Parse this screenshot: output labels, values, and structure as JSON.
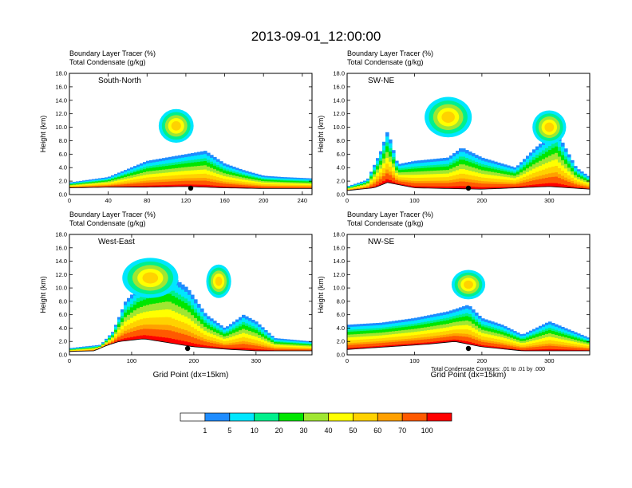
{
  "title": "2013-09-01_12:00:00",
  "palette": [
    "#ffffff",
    "#1e8cff",
    "#00e6ff",
    "#00f08c",
    "#00e600",
    "#a0e632",
    "#ffff00",
    "#ffd200",
    "#ffa000",
    "#ff5a00",
    "#ff0000"
  ],
  "colorbar": {
    "labels": [
      "1",
      "5",
      "10",
      "20",
      "30",
      "40",
      "50",
      "60",
      "70",
      "100"
    ]
  },
  "footnote": "Total Condensate Contours: .01 to .01 by .000",
  "chart_data": [
    {
      "type": "heatmap",
      "panel_label": "South-North",
      "subtitle1": "Boundary Layer Tracer    (%)",
      "subtitle2": "Total Condensate    (g/kg)",
      "ylabel": "Height (km)",
      "xlabel": "",
      "xlim": [
        0,
        250
      ],
      "ylim": [
        0,
        18
      ],
      "xticks": [
        "0",
        "40",
        "80",
        "120",
        "160",
        "200",
        "240"
      ],
      "yticks": [
        "0.0",
        "2.0",
        "4.0",
        "6.0",
        "8.0",
        "10.0",
        "12.0",
        "14.0",
        "16.0",
        "18.0"
      ],
      "terrain_top_km": [
        [
          0,
          1.0
        ],
        [
          40,
          1.1
        ],
        [
          80,
          1.1
        ],
        [
          120,
          1.2
        ],
        [
          160,
          1.0
        ],
        [
          200,
          0.9
        ],
        [
          250,
          0.9
        ]
      ],
      "layer_top_km": [
        [
          0,
          1.8
        ],
        [
          40,
          2.6
        ],
        [
          60,
          3.8
        ],
        [
          80,
          5.0
        ],
        [
          100,
          5.5
        ],
        [
          120,
          6.0
        ],
        [
          140,
          6.5
        ],
        [
          160,
          4.6
        ],
        [
          180,
          3.6
        ],
        [
          200,
          2.8
        ],
        [
          220,
          2.6
        ],
        [
          250,
          2.4
        ]
      ],
      "anvil": [
        [
          110,
          10.2,
          18,
          2.5
        ]
      ],
      "marker_x": 125
    },
    {
      "type": "heatmap",
      "panel_label": "SW-NE",
      "subtitle1": "Boundary Layer Tracer    (%)",
      "subtitle2": "Total Condensate    (g/kg)",
      "ylabel": "Height (km)",
      "xlabel": "",
      "xlim": [
        0,
        360
      ],
      "ylim": [
        0,
        18
      ],
      "xticks": [
        "0",
        "100",
        "200",
        "300"
      ],
      "yticks": [
        "0.0",
        "2.0",
        "4.0",
        "6.0",
        "8.0",
        "10.0",
        "12.0",
        "14.0",
        "16.0",
        "18.0"
      ],
      "terrain_top_km": [
        [
          0,
          0.6
        ],
        [
          40,
          1.0
        ],
        [
          60,
          1.8
        ],
        [
          80,
          1.4
        ],
        [
          100,
          1.0
        ],
        [
          200,
          0.8
        ],
        [
          300,
          1.2
        ],
        [
          360,
          0.8
        ]
      ],
      "layer_top_km": [
        [
          0,
          1.2
        ],
        [
          30,
          2.2
        ],
        [
          50,
          6.5
        ],
        [
          60,
          9.5
        ],
        [
          75,
          4.5
        ],
        [
          100,
          5.0
        ],
        [
          150,
          5.5
        ],
        [
          170,
          7.0
        ],
        [
          200,
          5.5
        ],
        [
          250,
          4.0
        ],
        [
          280,
          7.0
        ],
        [
          310,
          9.5
        ],
        [
          340,
          4.0
        ],
        [
          360,
          2.6
        ]
      ],
      "anvil": [
        [
          150,
          11.5,
          35,
          3.0
        ],
        [
          300,
          10.0,
          25,
          2.5
        ]
      ],
      "marker_x": 180
    },
    {
      "type": "heatmap",
      "panel_label": "West-East",
      "subtitle1": "Boundary Layer Tracer    (%)",
      "subtitle2": "Total Condensate    (g/kg)",
      "ylabel": "Height (km)",
      "xlabel": "Grid Point (dx=15km)",
      "xlim": [
        0,
        390
      ],
      "ylim": [
        0,
        18
      ],
      "xticks": [
        "0",
        "100",
        "200",
        "300"
      ],
      "yticks": [
        "0.0",
        "2.0",
        "4.0",
        "6.0",
        "8.0",
        "10.0",
        "12.0",
        "14.0",
        "16.0",
        "18.0"
      ],
      "terrain_top_km": [
        [
          0,
          0.5
        ],
        [
          40,
          0.6
        ],
        [
          60,
          1.4
        ],
        [
          80,
          2.0
        ],
        [
          120,
          2.4
        ],
        [
          160,
          1.8
        ],
        [
          200,
          1.2
        ],
        [
          260,
          0.8
        ],
        [
          300,
          0.6
        ],
        [
          390,
          0.6
        ]
      ],
      "layer_top_km": [
        [
          0,
          1.0
        ],
        [
          50,
          1.5
        ],
        [
          70,
          3.5
        ],
        [
          90,
          8.0
        ],
        [
          110,
          10.0
        ],
        [
          130,
          11.0
        ],
        [
          160,
          12.0
        ],
        [
          190,
          10.0
        ],
        [
          220,
          6.0
        ],
        [
          250,
          4.0
        ],
        [
          280,
          6.0
        ],
        [
          300,
          5.0
        ],
        [
          330,
          2.5
        ],
        [
          390,
          2.0
        ]
      ],
      "anvil": [
        [
          130,
          11.5,
          45,
          3.0
        ],
        [
          240,
          11.0,
          20,
          2.5
        ]
      ],
      "marker_x": 190
    },
    {
      "type": "heatmap",
      "panel_label": "NW-SE",
      "subtitle1": "Boundary Layer Tracer    (%)",
      "subtitle2": "Total Condensate    (g/kg)",
      "ylabel": "Height (km)",
      "xlabel": "Grid Point (dx=15km)",
      "xlim": [
        0,
        360
      ],
      "ylim": [
        0,
        18
      ],
      "xticks": [
        "0",
        "100",
        "200",
        "300"
      ],
      "yticks": [
        "0.0",
        "2.0",
        "4.0",
        "6.0",
        "8.0",
        "10.0",
        "12.0",
        "14.0",
        "16.0",
        "18.0"
      ],
      "terrain_top_km": [
        [
          0,
          0.8
        ],
        [
          60,
          1.2
        ],
        [
          120,
          1.6
        ],
        [
          160,
          2.0
        ],
        [
          200,
          1.2
        ],
        [
          260,
          0.6
        ],
        [
          360,
          0.6
        ]
      ],
      "layer_top_km": [
        [
          0,
          4.5
        ],
        [
          50,
          4.8
        ],
        [
          100,
          5.5
        ],
        [
          150,
          6.5
        ],
        [
          180,
          7.5
        ],
        [
          200,
          5.5
        ],
        [
          230,
          4.5
        ],
        [
          260,
          3.0
        ],
        [
          300,
          5.0
        ],
        [
          360,
          2.5
        ]
      ],
      "anvil": [
        [
          180,
          10.5,
          25,
          2.2
        ]
      ],
      "marker_x": 180
    }
  ]
}
